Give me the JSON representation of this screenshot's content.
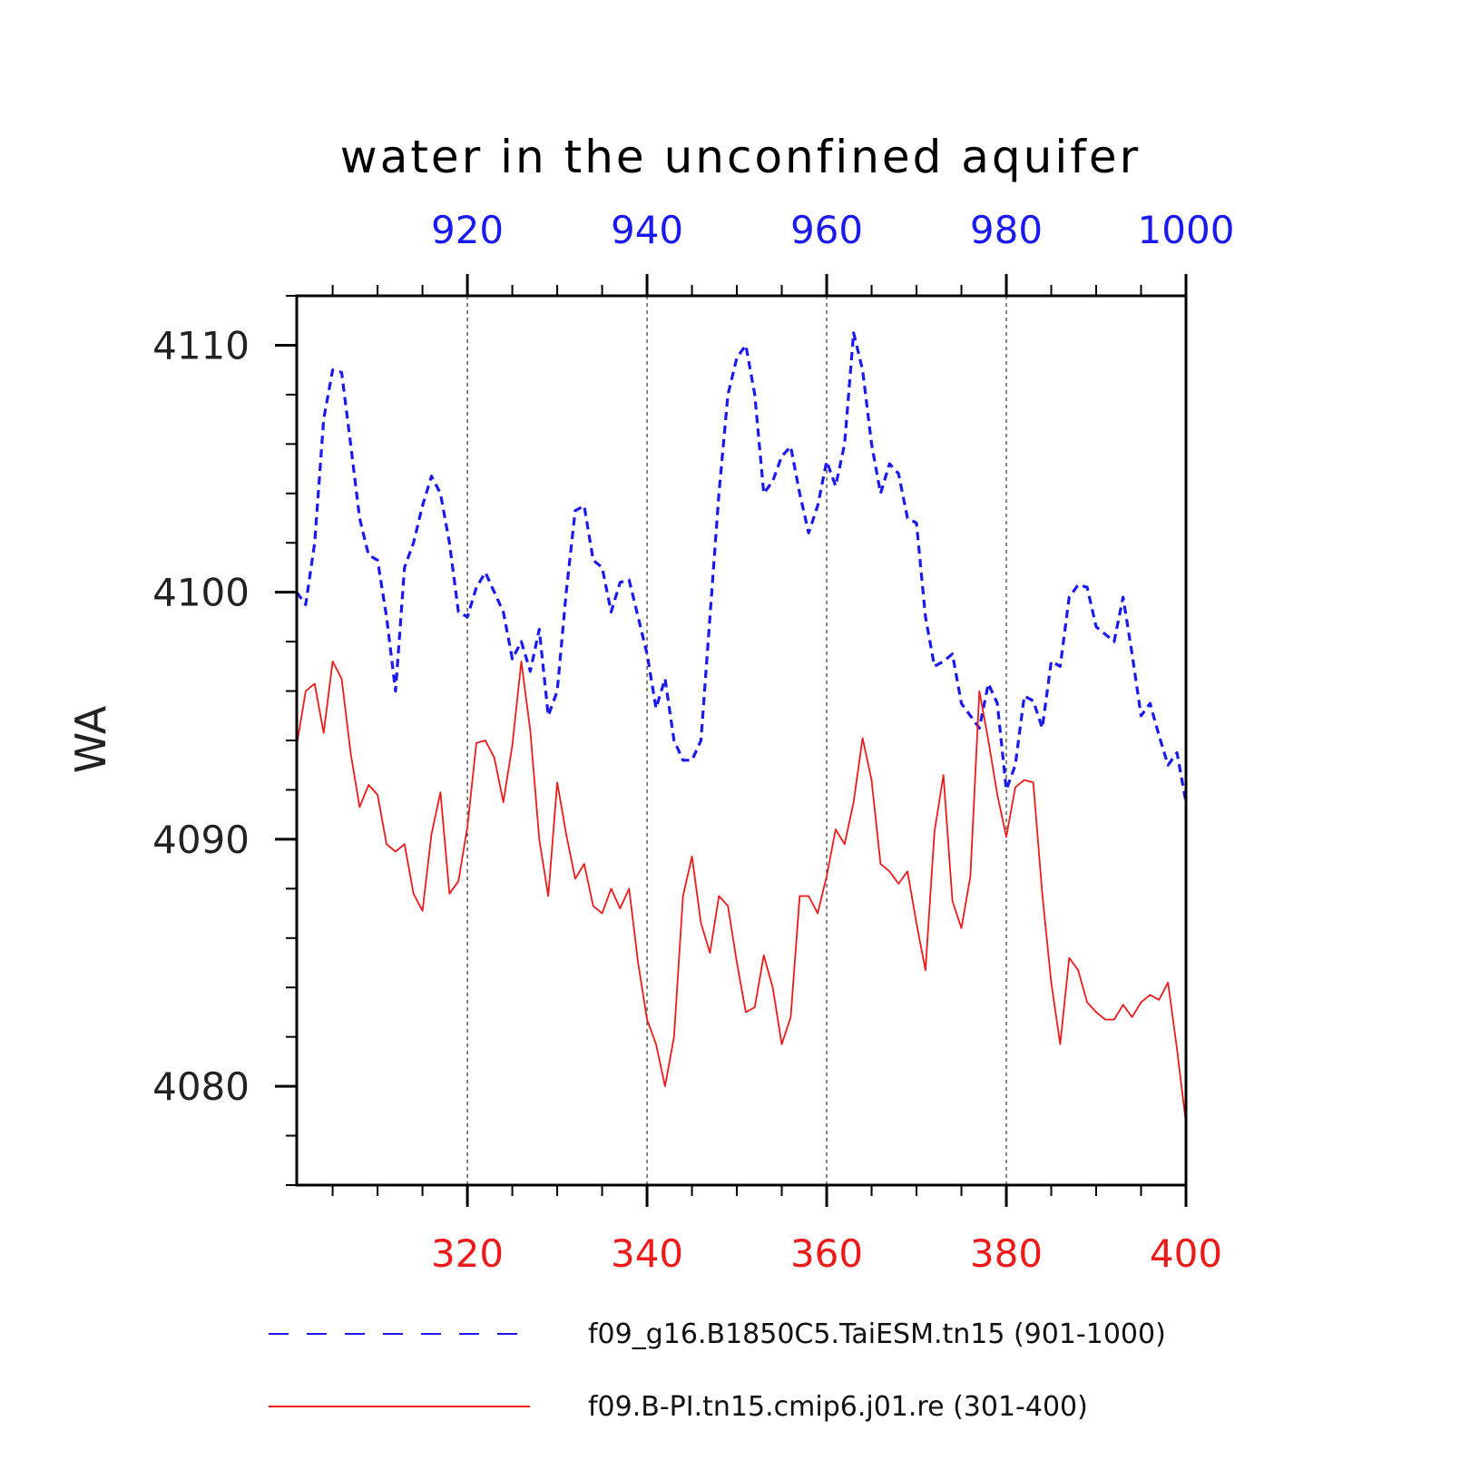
{
  "chart_data": {
    "type": "line",
    "title": "water in the unconfined aquifer",
    "ylabel": "WA",
    "ylim": [
      4076,
      4112
    ],
    "yticks": [
      "4080",
      "4090",
      "4100",
      "4110"
    ],
    "top_axis": {
      "range": [
        901,
        1000
      ],
      "ticks": [
        "920",
        "940",
        "960",
        "980",
        "1000"
      ],
      "color": "#1a1aee"
    },
    "bottom_axis": {
      "range": [
        301,
        400
      ],
      "ticks": [
        "320",
        "340",
        "360",
        "380",
        "400"
      ],
      "color": "#ee1a1a"
    },
    "grid": "dashed vertical lines at major x ticks",
    "legend_position": "bottom",
    "series": [
      {
        "name": "f09_g16.B1850C5.TaiESM.tn15 (901-1000)",
        "axis": "top",
        "color": "#1a1aee",
        "style": "dashed",
        "x_start": 901,
        "values": [
          4100.0,
          4099.5,
          4102.0,
          4107.0,
          4109.0,
          4108.9,
          4106.0,
          4103.0,
          4101.5,
          4101.3,
          4099.0,
          4096.0,
          4101.0,
          4102.0,
          4103.5,
          4104.7,
          4104.0,
          4102.0,
          4099.2,
          4099.0,
          4100.2,
          4100.8,
          4100.0,
          4099.2,
          4097.3,
          4098.0,
          4096.8,
          4098.5,
          4095.0,
          4096.0,
          4100.0,
          4103.3,
          4103.5,
          4101.3,
          4101.0,
          4099.2,
          4100.4,
          4100.5,
          4099.0,
          4097.5,
          4095.3,
          4096.5,
          4094.0,
          4093.2,
          4093.2,
          4094.0,
          4099.0,
          4104.0,
          4108.0,
          4109.5,
          4110.0,
          4108.0,
          4104.0,
          4104.5,
          4105.5,
          4105.9,
          4104.0,
          4102.4,
          4103.5,
          4105.3,
          4104.3,
          4106.0,
          4110.5,
          4109.0,
          4106.0,
          4104.0,
          4105.2,
          4104.8,
          4103.0,
          4102.8,
          4099.0,
          4097.0,
          4097.2,
          4097.5,
          4095.5,
          4095.0,
          4094.5,
          4096.3,
          4095.5,
          4092.0,
          4093.0,
          4095.8,
          4095.6,
          4094.5,
          4097.2,
          4097.0,
          4099.8,
          4100.3,
          4100.2,
          4098.6,
          4098.3,
          4098.0,
          4099.8,
          4097.5,
          4095.0,
          4095.5,
          4094.2,
          4093.0,
          4093.5,
          4091.5
        ]
      },
      {
        "name": "f09.B-PI.tn15.cmip6.j01.re (301-400)",
        "axis": "bottom",
        "color": "#ee1a1a",
        "style": "solid",
        "x_start": 301,
        "values": [
          4093.8,
          4096.0,
          4096.3,
          4094.3,
          4097.2,
          4096.5,
          4093.5,
          4091.3,
          4092.2,
          4091.8,
          4089.8,
          4089.5,
          4089.8,
          4087.8,
          4087.1,
          4090.2,
          4091.9,
          4087.8,
          4088.3,
          4090.5,
          4093.9,
          4094.0,
          4093.3,
          4091.5,
          4093.8,
          4097.2,
          4094.4,
          4090.0,
          4087.7,
          4092.3,
          4090.2,
          4088.4,
          4089.0,
          4087.3,
          4087.0,
          4088.0,
          4087.2,
          4088.0,
          4085.0,
          4082.7,
          4081.7,
          4080.0,
          4082.0,
          4087.7,
          4089.3,
          4086.6,
          4085.4,
          4087.7,
          4087.3,
          4085.0,
          4083.0,
          4083.2,
          4085.3,
          4084.0,
          4081.7,
          4082.8,
          4087.7,
          4087.7,
          4087.0,
          4088.5,
          4090.4,
          4089.8,
          4091.5,
          4094.1,
          4092.4,
          4089.0,
          4088.7,
          4088.2,
          4088.7,
          4086.6,
          4084.7,
          4090.3,
          4092.6,
          4087.5,
          4086.4,
          4088.5,
          4096.0,
          4094.0,
          4091.8,
          4090.1,
          4092.1,
          4092.4,
          4092.3,
          4087.8,
          4084.2,
          4081.7,
          4085.2,
          4084.7,
          4083.4,
          4083.0,
          4082.7,
          4082.7,
          4083.3,
          4082.8,
          4083.4,
          4083.7,
          4083.5,
          4084.2,
          4081.5,
          4078.5
        ]
      }
    ]
  }
}
